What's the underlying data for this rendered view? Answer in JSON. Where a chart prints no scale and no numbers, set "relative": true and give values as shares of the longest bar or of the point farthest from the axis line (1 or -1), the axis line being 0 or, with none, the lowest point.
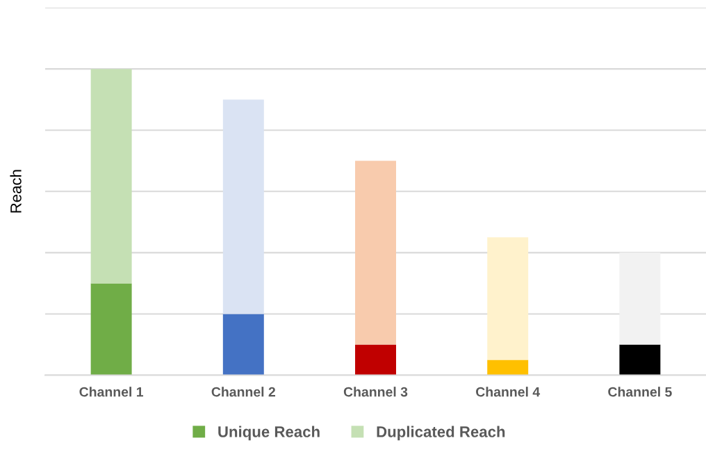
{
  "chart_data": {
    "type": "bar",
    "stacked": true,
    "relative": true,
    "ylabel": "Reach",
    "categories": [
      "Channel 1",
      "Channel 2",
      "Channel 3",
      "Channel 4",
      "Channel 5"
    ],
    "series": [
      {
        "name": "Unique Reach",
        "color": "#70ad47",
        "colors": [
          "#70ad47",
          "#4472c4",
          "#c00000",
          "#ffc000",
          "#000000"
        ],
        "values": [
          0.3,
          0.2,
          0.1,
          0.05,
          0.1
        ]
      },
      {
        "name": "Duplicated Reach",
        "color": "#c5e0b4",
        "colors": [
          "#c5e0b4",
          "#dae3f3",
          "#f8cbad",
          "#fff2cc",
          "#f2f2f2"
        ],
        "values": [
          0.7,
          0.7,
          0.6,
          0.4,
          0.3
        ]
      }
    ],
    "grid": "y",
    "legend": "bottom"
  }
}
